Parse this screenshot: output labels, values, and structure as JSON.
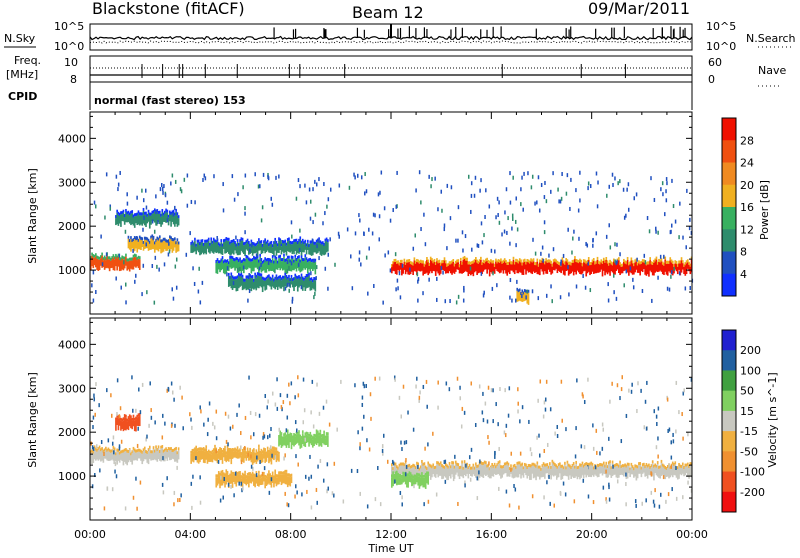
{
  "header": {
    "station": "Blackstone (fitACF)",
    "beam": "Beam 12",
    "date": "09/Mar/2011"
  },
  "top_panels": {
    "nsky_label": "N.Sky",
    "nsearch_label": "N.Search",
    "freq_label_1": "Freq.",
    "freq_label_2": "[MHz]",
    "nave_label": "Nave",
    "cpid_label": "CPID",
    "cpid_text": "normal (fast stereo) 153",
    "noise_left_ticks": [
      "10^5",
      "10^0"
    ],
    "noise_right_ticks": [
      "10^5",
      "10^0"
    ],
    "freq_left_ticks": [
      "10",
      "8"
    ],
    "freq_right_ticks": [
      "60",
      "0"
    ]
  },
  "colors": {
    "power_scale": [
      "#1030ff",
      "#2050c0",
      "#2e8c6c",
      "#38b060",
      "#f0b020",
      "#f08a20",
      "#f05010",
      "#f01000"
    ],
    "velocity_scale": [
      "#2020d0",
      "#2060a0",
      "#40a040",
      "#80d060",
      "#c8c8c0",
      "#f0b040",
      "#f09030",
      "#f05020",
      "#f01010"
    ]
  },
  "chart_data": [
    {
      "type": "heatmap",
      "panel": "power",
      "xlabel": "Time UT",
      "ylabel": "Slant Range [km]",
      "xlim": [
        "00:00",
        "24:00"
      ],
      "ylim": [
        0,
        4600
      ],
      "x_ticks": [
        "00:00",
        "04:00",
        "08:00",
        "12:00",
        "16:00",
        "20:00",
        "00:00"
      ],
      "y_ticks": [
        1000,
        2000,
        3000,
        4000
      ],
      "colorbar_label": "Power [dB]",
      "colorbar_ticks": [
        4,
        8,
        12,
        16,
        20,
        24,
        28
      ],
      "colorbar_range": [
        0,
        32
      ],
      "features": [
        {
          "t_start": 0.0,
          "t_end": 2.0,
          "range_km": 1150,
          "power_db": 24
        },
        {
          "t_start": 1.5,
          "t_end": 3.5,
          "range_km": 1550,
          "power_db": 16
        },
        {
          "t_start": 1.0,
          "t_end": 3.5,
          "range_km": 2150,
          "power_db": 10
        },
        {
          "t_start": 4.0,
          "t_end": 9.5,
          "range_km": 1500,
          "power_db": 8
        },
        {
          "t_start": 5.0,
          "t_end": 9.0,
          "range_km": 1100,
          "power_db": 12
        },
        {
          "t_start": 5.5,
          "t_end": 9.0,
          "range_km": 700,
          "power_db": 8
        },
        {
          "t_start": 12.0,
          "t_end": 24.0,
          "range_km": 1050,
          "power_db": 28
        },
        {
          "t_start": 17.0,
          "t_end": 17.5,
          "range_km": 400,
          "power_db": 16
        }
      ]
    },
    {
      "type": "heatmap",
      "panel": "velocity",
      "xlabel": "Time UT",
      "ylabel": "Slant Range [km]",
      "xlim": [
        "00:00",
        "24:00"
      ],
      "ylim": [
        0,
        4600
      ],
      "x_ticks": [
        "00:00",
        "04:00",
        "08:00",
        "12:00",
        "16:00",
        "20:00",
        "00:00"
      ],
      "y_ticks": [
        1000,
        2000,
        3000,
        4000
      ],
      "colorbar_label": "Velocity [m s^-1]",
      "colorbar_ticks": [
        200,
        100,
        50,
        15,
        -15,
        -50,
        -100,
        -200
      ],
      "colorbar_range": [
        -250,
        250
      ],
      "features": [
        {
          "t_start": 0.0,
          "t_end": 3.5,
          "range_km": 1450,
          "velocity": 0
        },
        {
          "t_start": 1.0,
          "t_end": 2.0,
          "range_km": 2200,
          "velocity": -150
        },
        {
          "t_start": 4.0,
          "t_end": 7.5,
          "range_km": 1450,
          "velocity": -50
        },
        {
          "t_start": 5.0,
          "t_end": 8.0,
          "range_km": 900,
          "velocity": -50
        },
        {
          "t_start": 7.5,
          "t_end": 9.5,
          "range_km": 1800,
          "velocity": 40
        },
        {
          "t_start": 12.0,
          "t_end": 24.0,
          "range_km": 1100,
          "velocity": 0
        },
        {
          "t_start": 12.0,
          "t_end": 13.5,
          "range_km": 900,
          "velocity": 40
        }
      ]
    }
  ]
}
